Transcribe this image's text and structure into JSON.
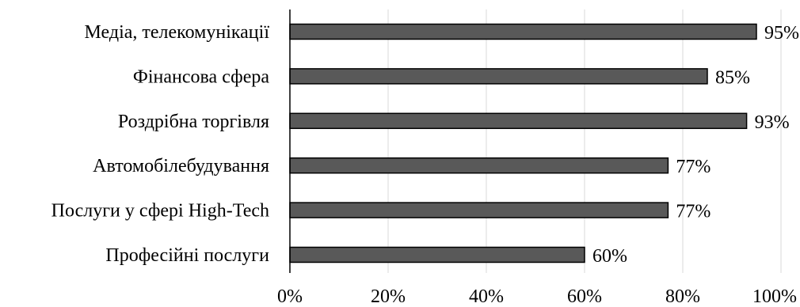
{
  "chart_data": {
    "type": "bar",
    "orientation": "horizontal",
    "categories": [
      "Медіа, телекомунікації",
      "Фінансова сфера",
      "Роздрібна торгівля",
      "Автомобілебудування",
      "Послуги у сфері High-Tech",
      "Професійні послуги"
    ],
    "values": [
      95,
      85,
      93,
      77,
      77,
      60
    ],
    "value_labels": [
      "95%",
      "85%",
      "93%",
      "77%",
      "77%",
      "60%"
    ],
    "x_ticks": [
      "0%",
      "20%",
      "40%",
      "60%",
      "80%",
      "100%"
    ],
    "xlim": [
      0,
      100
    ],
    "grid": "vertical",
    "legend": "none",
    "bar_color": "#595959",
    "bar_edge_color": "#000000",
    "grid_color": "#d9d9d9",
    "title": "",
    "xlabel": "",
    "ylabel": ""
  }
}
